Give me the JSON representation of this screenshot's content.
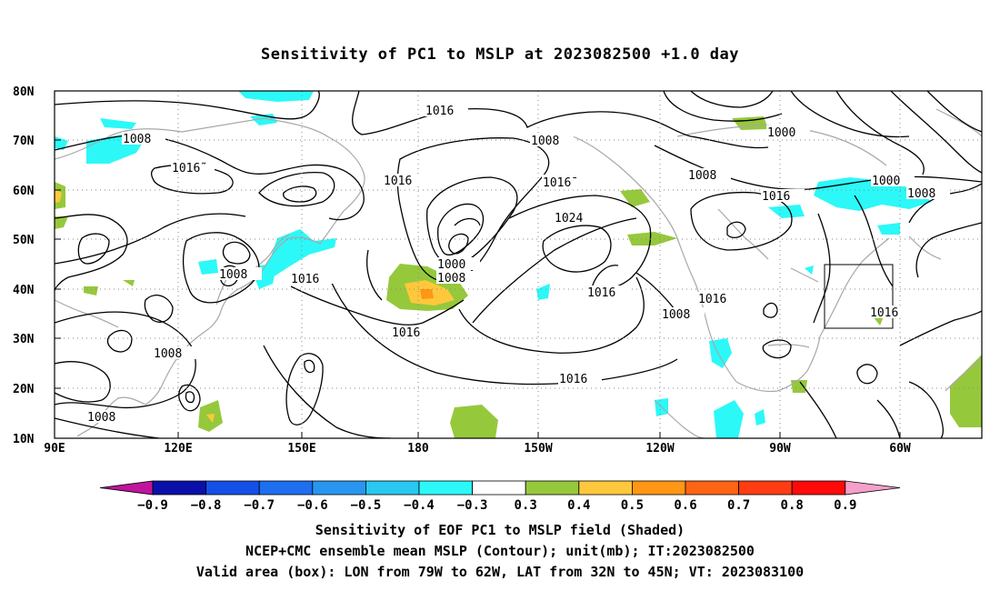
{
  "title": "Sensitivity of PC1 to MSLP at 2023082500 +1.0 day",
  "lat_labels": [
    "80N",
    "70N",
    "60N",
    "50N",
    "40N",
    "30N",
    "20N",
    "10N"
  ],
  "lon_labels": [
    "90E",
    "120E",
    "150E",
    "180",
    "150W",
    "120W",
    "90W",
    "60W"
  ],
  "contour_labels": [
    {
      "text": "1016",
      "id": "c1"
    },
    {
      "text": "1008",
      "id": "c2"
    },
    {
      "text": "1016̃",
      "id": "c3"
    },
    {
      "text": "1008",
      "id": "c4"
    },
    {
      "text": "1016",
      "id": "c5"
    },
    {
      "text": "1000",
      "id": "c6"
    },
    {
      "text": "1008",
      "id": "c7"
    },
    {
      "text": "1016̄",
      "id": "c8"
    },
    {
      "text": "1024",
      "id": "c9"
    },
    {
      "text": "1008",
      "id": "c10"
    },
    {
      "text": "1016",
      "id": "c11"
    },
    {
      "text": "1016",
      "id": "c12"
    },
    {
      "text": "1008",
      "id": "c13"
    },
    {
      "text": "1016",
      "id": "c14"
    },
    {
      "text": "1008",
      "id": "c15"
    },
    {
      "text": "1016",
      "id": "c16"
    },
    {
      "text": "1000",
      "id": "c17"
    },
    {
      "text": "1008",
      "id": "c18"
    },
    {
      "text": "1016",
      "id": "c19"
    },
    {
      "text": "1000",
      "id": "c20"
    },
    {
      "text": "1008",
      "id": "c21"
    },
    {
      "text": "1016",
      "id": "c22"
    },
    {
      "text": "1016",
      "id": "c23"
    },
    {
      "text": "1008",
      "id": "c24"
    },
    {
      "text": "1016",
      "id": "c25"
    }
  ],
  "colorbar": {
    "labels": [
      "−0.9",
      "−0.8",
      "−0.7",
      "−0.6",
      "−0.5",
      "−0.4",
      "−0.3",
      "0.3",
      "0.4",
      "0.5",
      "0.6",
      "0.7",
      "0.8",
      "0.9"
    ],
    "colors": [
      "#c0149c",
      "#0a10a8",
      "#1450e8",
      "#1e6ef0",
      "#2896f0",
      "#28c8f0",
      "#2cf8f8",
      "#ffffff",
      "#96c83c",
      "#ffc83c",
      "#ff9614",
      "#ff6414",
      "#ff3c14",
      "#ff0a0a",
      "#f5a0c8"
    ]
  },
  "captions": {
    "line1": "Sensitivity of EOF PC1 to MSLP field (Shaded)",
    "line2": "NCEP+CMC ensemble mean MSLP (Contour); unit(mb); IT:2023082500",
    "line3": "Valid area (box): LON from 79W to 62W, LAT from 32N to 45N; VT: 2023083100"
  }
}
